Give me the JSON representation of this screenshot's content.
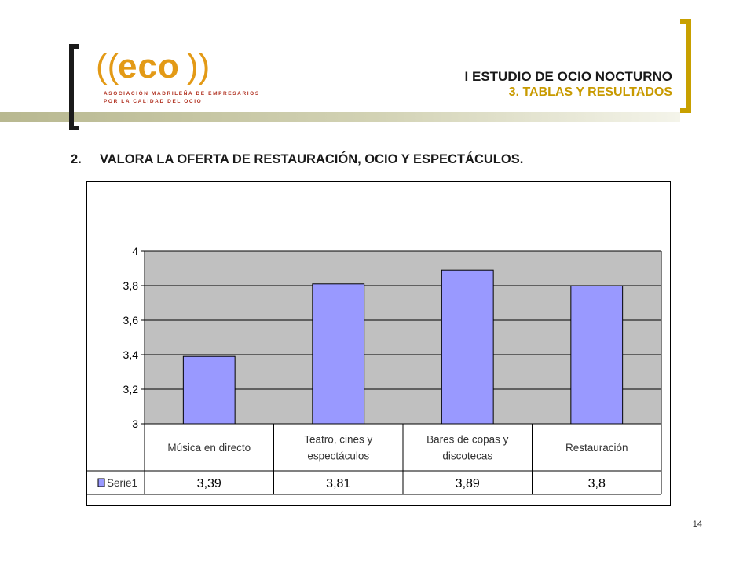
{
  "header": {
    "title": "I ESTUDIO DE OCIO NOCTURNO",
    "subtitle": "3. TABLAS Y RESULTADOS",
    "logo": {
      "word": "eco",
      "line1": "ASOCIACIÓN MADRILEÑA DE EMPRESARIOS",
      "line2": "POR LA CALIDAD DEL OCIO"
    }
  },
  "question": {
    "number": "2.",
    "text": "VALORA LA OFERTA DE RESTAURACIÓN, OCIO Y ESPECTÁCULOS."
  },
  "chart_data": {
    "type": "bar",
    "categories": [
      [
        "Música en directo"
      ],
      [
        "Teatro, cines y",
        "espectáculos"
      ],
      [
        "Bares de copas y",
        "discotecas"
      ],
      [
        "Restauración"
      ]
    ],
    "series": [
      {
        "name": "Serie1",
        "values": [
          3.39,
          3.81,
          3.89,
          3.8
        ],
        "labels": [
          "3,39",
          "3,81",
          "3,89",
          "3,8"
        ]
      }
    ],
    "ylim": [
      3,
      4
    ],
    "yticks": [
      "3",
      "3,2",
      "3,4",
      "3,6",
      "3,8",
      "4"
    ],
    "grid": true,
    "data_table": true,
    "colors": {
      "bar": "#9999ff",
      "plot_bg": "#c0c0c0",
      "border": "#000000"
    }
  },
  "footer": {
    "page_number": "14"
  }
}
